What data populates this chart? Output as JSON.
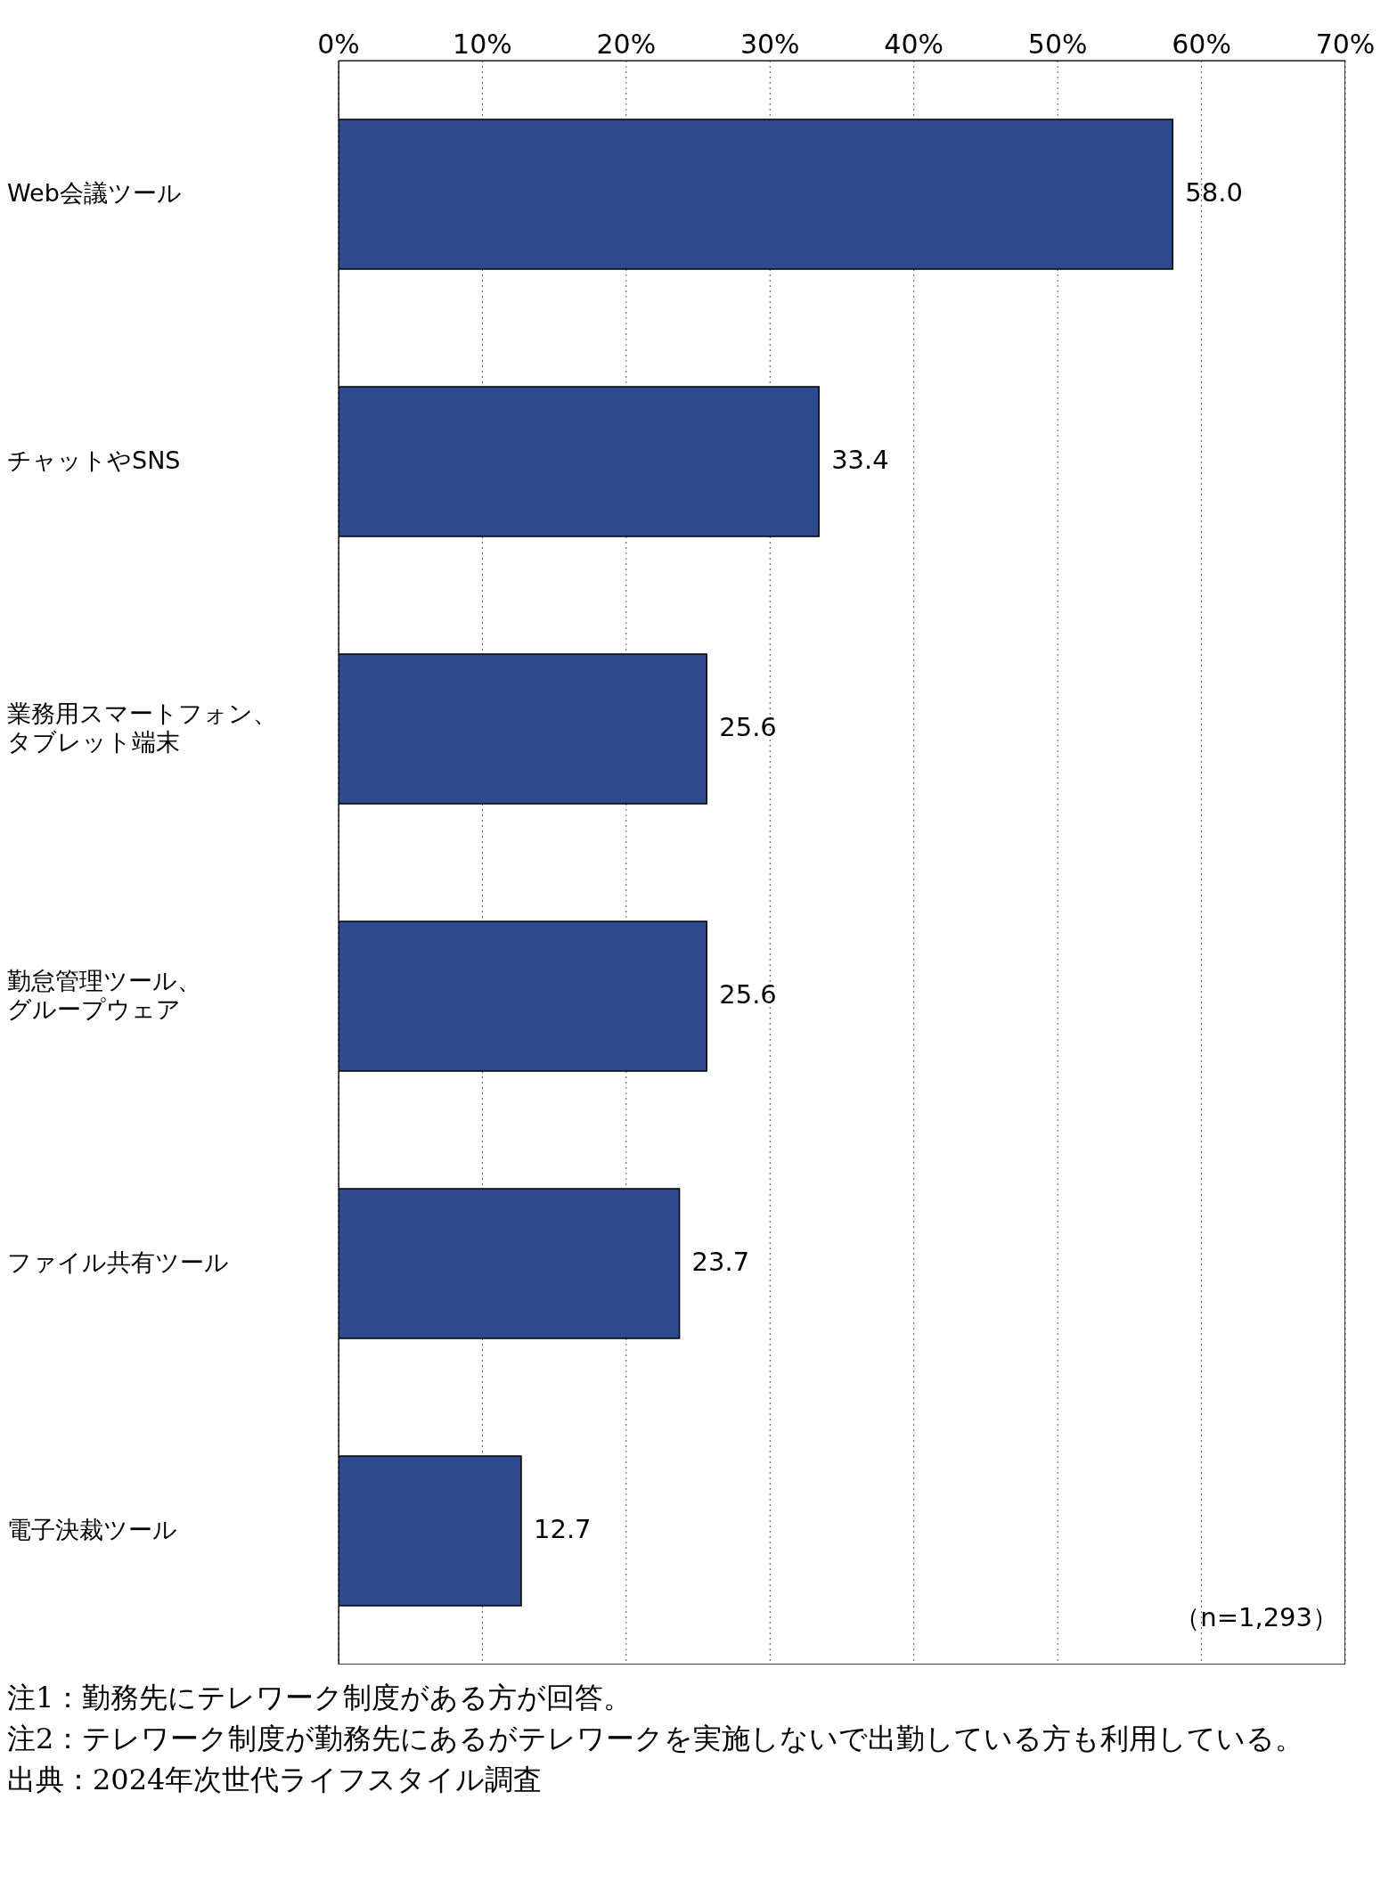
{
  "chart_data": {
    "type": "bar",
    "orientation": "horizontal",
    "categories": [
      "Web会議ツール",
      "チャットやSNS",
      "業務用スマートフォン、タブレット端末",
      "勤怠管理ツール、グループウェア",
      "ファイル共有ツール",
      "電子決裁ツール"
    ],
    "values": [
      58.0,
      33.4,
      25.6,
      25.6,
      23.7,
      12.7
    ],
    "value_labels": [
      "58.0",
      "33.4",
      "25.6",
      "25.6",
      "23.7",
      "12.7"
    ],
    "color": "#2e4a8f",
    "xlim": [
      0,
      70
    ],
    "xticks": [
      {
        "value": 0,
        "label": "0%"
      },
      {
        "value": 10,
        "label": "10%"
      },
      {
        "value": 20,
        "label": "20%"
      },
      {
        "value": 30,
        "label": "30%"
      },
      {
        "value": 40,
        "label": "40%"
      },
      {
        "value": 50,
        "label": "50%"
      },
      {
        "value": 60,
        "label": "60%"
      },
      {
        "value": 70,
        "label": "70%"
      }
    ],
    "grid": "x",
    "annotations": [
      "（n=1,293）",
      "注1：勤務先にテレワーク制度がある方が回答。",
      "注2：テレワーク制度が勤務先にあるがテレワークを実施しないで出勤している方も利用している。",
      "出典：2024年次世代ライフスタイル調査"
    ]
  }
}
